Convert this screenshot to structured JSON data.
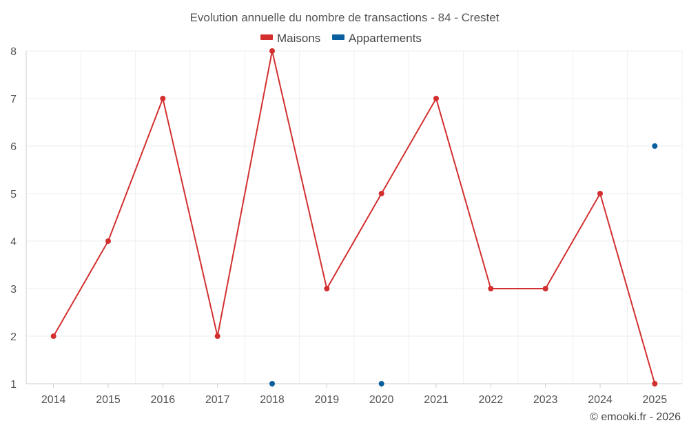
{
  "chart_data": {
    "type": "line",
    "title": "Evolution annuelle du nombre de transactions - 84 - Crestet",
    "categories": [
      "2014",
      "2015",
      "2016",
      "2017",
      "2018",
      "2019",
      "2020",
      "2021",
      "2022",
      "2023",
      "2024",
      "2025"
    ],
    "series": [
      {
        "name": "Maisons",
        "color": "#d32f2f",
        "line": true,
        "values": [
          2,
          4,
          7,
          2,
          8,
          3,
          5,
          7,
          3,
          3,
          5,
          1
        ]
      },
      {
        "name": "Appartements",
        "color": "#0a5f9e",
        "line": false,
        "values": [
          null,
          null,
          null,
          null,
          1,
          null,
          1,
          null,
          null,
          null,
          null,
          6
        ]
      }
    ],
    "ylim": [
      1,
      8
    ],
    "yticks": [
      1,
      2,
      3,
      4,
      5,
      6,
      7,
      8
    ],
    "grid": true,
    "legend_position": "top-center",
    "xlabel": "",
    "ylabel": ""
  },
  "credit": "© emooki.fr - 2026"
}
